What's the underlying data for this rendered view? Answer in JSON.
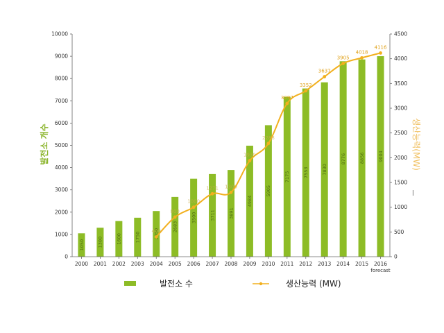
{
  "chart_data": {
    "type": "bar",
    "categories": [
      "2000",
      "2001",
      "2002",
      "2003",
      "2004",
      "2005",
      "2006",
      "2007",
      "2008",
      "2009",
      "2010",
      "2011",
      "2012",
      "2013",
      "2014",
      "2015",
      "2016"
    ],
    "category_sublabels": {
      "2016": "forecast"
    },
    "series": [
      {
        "name": "발전소 수",
        "type": "bar",
        "axis": "left",
        "color": "#8dbc26",
        "values": [
          1050,
          1300,
          1600,
          1750,
          2050,
          2683,
          3500,
          3711,
          3891,
          4984,
          5905,
          7175,
          7553,
          7830,
          8776,
          8856,
          9004
        ],
        "labels": [
          "1050",
          "1300",
          "1600",
          "1750",
          "2050",
          "2683",
          "3500",
          "3711",
          "3891",
          "4984",
          "5905",
          "7175",
          "7553",
          "7830",
          "8776",
          "8856",
          "9004"
        ]
      },
      {
        "name": "생산능력 (MW)",
        "type": "line",
        "axis": "right",
        "color": "#f2b01e",
        "values": [
          null,
          null,
          null,
          null,
          400,
          800,
          1000,
          1271,
          1300,
          1939,
          2288,
          3097,
          3352,
          3637,
          3905,
          4018,
          4116
        ],
        "labels": [
          "",
          "",
          "",
          "",
          "400",
          "800",
          "1000",
          "1271",
          "1300",
          "1939",
          "2288",
          "3097",
          "3352",
          "3637",
          "3905",
          "4018",
          "4116"
        ]
      }
    ],
    "yaxis_left": {
      "label": "발전소 개수",
      "min": 0,
      "max": 10000,
      "ticks": [
        0,
        1000,
        2000,
        3000,
        4000,
        5000,
        6000,
        7000,
        8000,
        9000,
        10000
      ]
    },
    "yaxis_right": {
      "label": "생산능력(MW)",
      "min": 0,
      "max": 4500,
      "ticks": [
        0,
        500,
        1000,
        1500,
        2000,
        2500,
        3000,
        3500,
        4000,
        4500
      ]
    },
    "grid": false,
    "legend_position": "bottom",
    "colors": {
      "bar": "#8dbc26",
      "line": "#f2b01e",
      "left_title": "#8ab42a",
      "right_title": "#f0c060"
    }
  }
}
